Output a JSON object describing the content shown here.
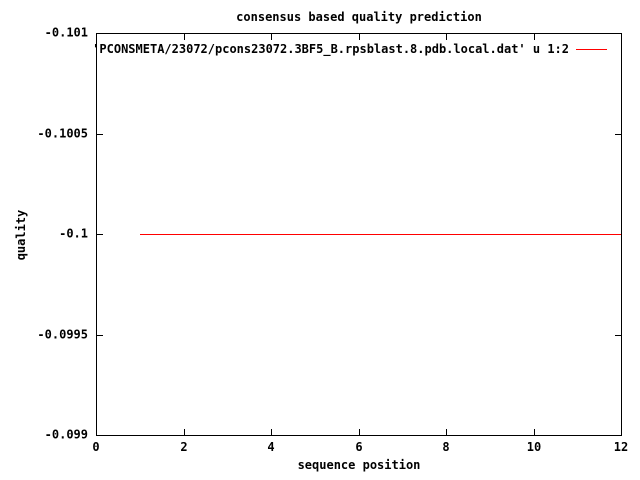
{
  "chart_data": {
    "type": "line",
    "title": "consensus based quality prediction",
    "xlabel": "sequence position",
    "ylabel": "quality",
    "xlim": [
      0,
      12
    ],
    "ylim": [
      -0.101,
      -0.099
    ],
    "y_axis_reversed": true,
    "grid": false,
    "x_ticks": [
      0,
      2,
      4,
      6,
      8,
      10,
      12
    ],
    "x_tick_labels": [
      "0",
      "2",
      "4",
      "6",
      "8",
      "10",
      "12"
    ],
    "y_ticks": [
      -0.101,
      -0.1005,
      -0.1,
      -0.0995,
      -0.099
    ],
    "y_tick_labels": [
      "-0.101",
      "-0.1005",
      "-0.1",
      "-0.0995",
      "-0.099"
    ],
    "legend_position": "top-right-inside",
    "series": [
      {
        "name": "'PCONSMETA/23072/pcons23072.3BF5_B.rpsblast.8.pdb.local.dat' u 1:2",
        "color": "#ff0000",
        "x": [
          1,
          12
        ],
        "y": [
          -0.1,
          -0.1
        ]
      }
    ],
    "colors": {
      "background": "#ffffff",
      "foreground": "#000000",
      "series_red": "#ff0000"
    }
  }
}
